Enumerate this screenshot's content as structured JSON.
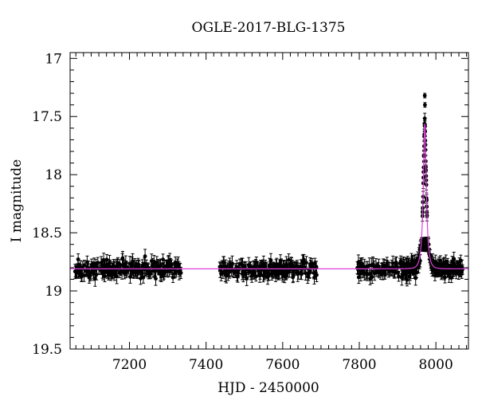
{
  "chart_data": {
    "type": "scatter",
    "title": "OGLE-2017-BLG-1375",
    "xlabel": "HJD - 2450000",
    "ylabel": "I magnitude",
    "xlim": [
      7045,
      8085
    ],
    "ylim": [
      19.5,
      16.95
    ],
    "y_inverted": true,
    "x_ticks": [
      7200,
      7400,
      7600,
      7800,
      8000
    ],
    "y_ticks": [
      17,
      17.5,
      18,
      18.5,
      19,
      19.5
    ],
    "y_tick_labels": [
      "17",
      "17.5",
      "18",
      "18.5",
      "19",
      "19.5"
    ],
    "grid": false,
    "colors": {
      "data": "#000000",
      "model": "#e040e0"
    },
    "series": [
      {
        "kind": "photometry",
        "baseline_mag": 18.81,
        "typical_error": 0.05,
        "seasons": [
          {
            "x_range": [
              7058,
              7335
            ],
            "mag_range": [
              18.6,
              19.05
            ]
          },
          {
            "x_range": [
              7435,
              7690
            ],
            "mag_range": [
              18.6,
              19.0
            ]
          },
          {
            "x_range": [
              7795,
              8070
            ],
            "mag_range": [
              18.6,
              19.0
            ]
          }
        ],
        "peak": {
          "x": 7971,
          "mag": 17.32
        }
      },
      {
        "kind": "model",
        "model": "single-lens microlensing fit",
        "t0": 7971,
        "peak_mag": 17.55,
        "baseline_mag": 18.81,
        "tE": 8
      }
    ]
  }
}
